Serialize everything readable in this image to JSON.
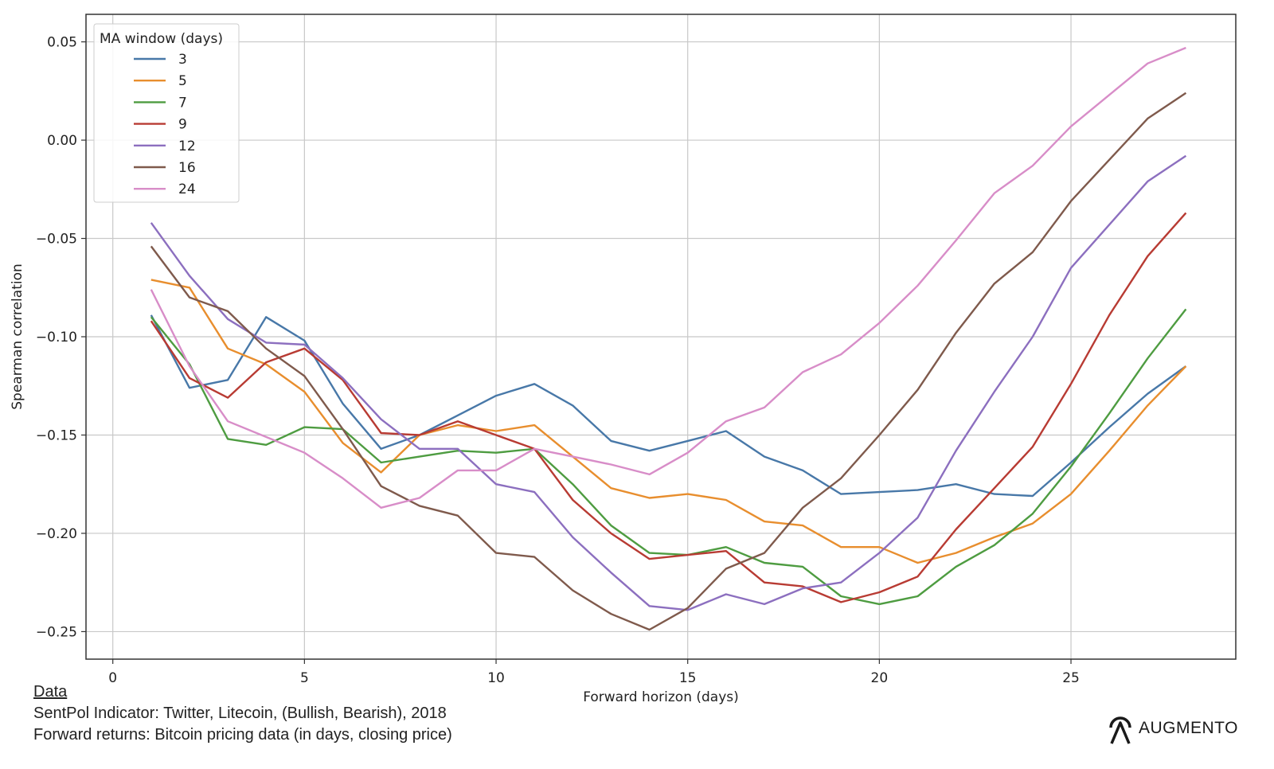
{
  "chart_data": {
    "type": "line",
    "title": "",
    "xlabel": "Forward horizon (days)",
    "ylabel": "Spearman correlation",
    "xlim": [
      -0.7,
      29.3
    ],
    "ylim": [
      -0.264,
      0.064
    ],
    "x_ticks": [
      0,
      5,
      10,
      15,
      20,
      25
    ],
    "y_ticks": [
      0.05,
      0.0,
      -0.05,
      -0.1,
      -0.15,
      -0.2,
      -0.25
    ],
    "x_tick_labels": [
      "0",
      "5",
      "10",
      "15",
      "20",
      "25"
    ],
    "y_tick_labels": [
      "0.05",
      "0.00",
      "−0.05",
      "−0.10",
      "−0.15",
      "−0.20",
      "−0.25"
    ],
    "grid": true,
    "legend": {
      "title": "MA window (days)",
      "placement": "top-left"
    },
    "x": [
      1,
      2,
      3,
      4,
      5,
      6,
      7,
      8,
      9,
      10,
      11,
      12,
      13,
      14,
      15,
      16,
      17,
      18,
      19,
      20,
      21,
      22,
      23,
      24,
      25,
      26,
      27,
      28
    ],
    "series": [
      {
        "name": "3",
        "color": "#4878a8",
        "values": [
          -0.089,
          -0.126,
          -0.122,
          -0.09,
          -0.102,
          -0.134,
          -0.157,
          -0.15,
          -0.14,
          -0.13,
          -0.124,
          -0.135,
          -0.153,
          -0.158,
          -0.153,
          -0.148,
          -0.161,
          -0.168,
          -0.18,
          -0.179,
          -0.178,
          -0.175,
          -0.18,
          -0.181,
          -0.164,
          -0.146,
          -0.129,
          -0.115
        ]
      },
      {
        "name": "5",
        "color": "#e88e2e",
        "values": [
          -0.071,
          -0.075,
          -0.106,
          -0.114,
          -0.128,
          -0.154,
          -0.169,
          -0.15,
          -0.145,
          -0.148,
          -0.145,
          -0.161,
          -0.177,
          -0.182,
          -0.18,
          -0.183,
          -0.194,
          -0.196,
          -0.207,
          -0.207,
          -0.215,
          -0.21,
          -0.202,
          -0.195,
          -0.18,
          -0.158,
          -0.135,
          -0.115
        ]
      },
      {
        "name": "7",
        "color": "#4e9c41",
        "values": [
          -0.09,
          -0.114,
          -0.152,
          -0.155,
          -0.146,
          -0.147,
          -0.164,
          -0.161,
          -0.158,
          -0.159,
          -0.157,
          -0.175,
          -0.196,
          -0.21,
          -0.211,
          -0.207,
          -0.215,
          -0.217,
          -0.232,
          -0.236,
          -0.232,
          -0.217,
          -0.206,
          -0.19,
          -0.166,
          -0.139,
          -0.111,
          -0.086
        ]
      },
      {
        "name": "9",
        "color": "#b83b33",
        "values": [
          -0.092,
          -0.121,
          -0.131,
          -0.113,
          -0.106,
          -0.122,
          -0.149,
          -0.15,
          -0.143,
          -0.15,
          -0.157,
          -0.183,
          -0.2,
          -0.213,
          -0.211,
          -0.209,
          -0.225,
          -0.227,
          -0.235,
          -0.23,
          -0.222,
          -0.198,
          -0.177,
          -0.156,
          -0.124,
          -0.089,
          -0.059,
          -0.037
        ]
      },
      {
        "name": "12",
        "color": "#8c6fbf",
        "values": [
          -0.042,
          -0.069,
          -0.091,
          -0.103,
          -0.104,
          -0.121,
          -0.142,
          -0.157,
          -0.157,
          -0.175,
          -0.179,
          -0.202,
          -0.22,
          -0.237,
          -0.239,
          -0.231,
          -0.236,
          -0.228,
          -0.225,
          -0.21,
          -0.192,
          -0.158,
          -0.128,
          -0.1,
          -0.065,
          -0.043,
          -0.021,
          -0.008
        ]
      },
      {
        "name": "16",
        "color": "#7f5a4c",
        "values": [
          -0.054,
          -0.08,
          -0.087,
          -0.106,
          -0.12,
          -0.147,
          -0.176,
          -0.186,
          -0.191,
          -0.21,
          -0.212,
          -0.229,
          -0.241,
          -0.249,
          -0.238,
          -0.218,
          -0.21,
          -0.187,
          -0.172,
          -0.15,
          -0.127,
          -0.098,
          -0.073,
          -0.057,
          -0.031,
          -0.01,
          0.011,
          0.024
        ]
      },
      {
        "name": "24",
        "color": "#d88dc8",
        "values": [
          -0.076,
          -0.115,
          -0.143,
          -0.151,
          -0.159,
          -0.172,
          -0.187,
          -0.182,
          -0.168,
          -0.168,
          -0.157,
          -0.161,
          -0.165,
          -0.17,
          -0.159,
          -0.143,
          -0.136,
          -0.118,
          -0.109,
          -0.093,
          -0.074,
          -0.051,
          -0.027,
          -0.013,
          0.007,
          0.023,
          0.039,
          0.047
        ]
      }
    ]
  },
  "footer": {
    "heading": "Data",
    "line1": "SentPol Indicator: Twitter, Litecoin, (Bullish, Bearish), 2018",
    "line2": "Forward returns: Bitcoin pricing data (in days, closing price)"
  },
  "brand": {
    "name": "AUGMENTO",
    "logo_icon": "augmento-logo-icon"
  }
}
